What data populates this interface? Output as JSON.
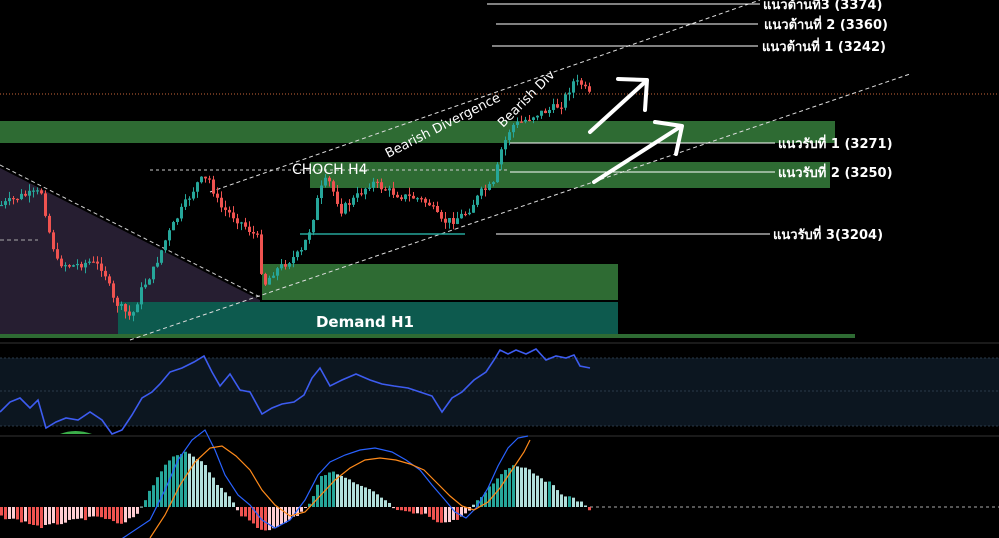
{
  "chart_data": [
    {
      "type": "candlestick",
      "panel": "price",
      "annotations": {
        "resistance_3": "แนวต้านที่3 (3374)",
        "resistance_2": "แนวต้านที่ 2 (3360)",
        "resistance_1": "แนวต้านที่ 1 (3242)",
        "support_1": "แนวรับที่ 1 (3271)",
        "support_2": "แนวรับที่ 2 (3250)",
        "support_3": "แนวรับที่ 3(3204)",
        "choch": "CHOCH H4",
        "bearish_divergence": "Bearish Divergence",
        "bearish_div": "Bearish Div",
        "demand": "Demand H1"
      },
      "colors": {
        "up_candle": "#26a69a",
        "down_candle": "#ef5350",
        "zone_green": "#2e6b33",
        "demand_zone": "#0d5a4e",
        "triangle_zone": "#2a2136"
      }
    },
    {
      "type": "line",
      "panel": "rsi",
      "colors": {
        "line": "#3d5cf0"
      }
    },
    {
      "type": "bar",
      "panel": "macd",
      "colors": {
        "pos_strong": "#26a69a",
        "pos_weak": "#b2dfdb",
        "neg_strong": "#ef5350",
        "neg_weak": "#ffcdd2",
        "macd_line": "#2962ff",
        "signal_line": "#ff8a1a"
      }
    }
  ]
}
